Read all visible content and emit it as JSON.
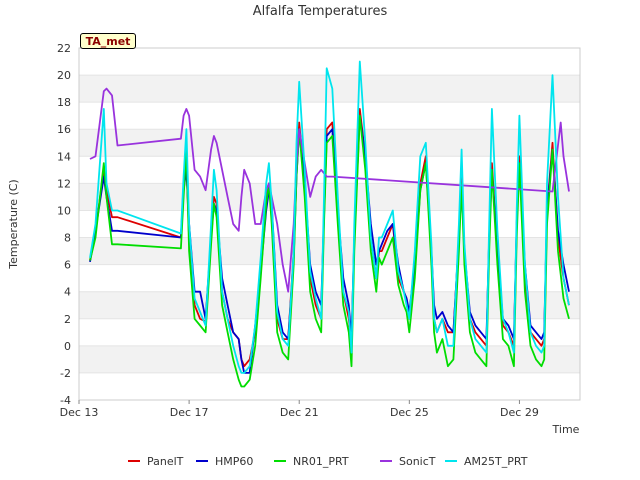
{
  "chart_data": {
    "type": "line",
    "title": "Alfalfa Temperatures",
    "xlabel": "Time",
    "ylabel": "Temperature (C)",
    "station_badge": "TA_met",
    "xlim": [
      13,
      31.2
    ],
    "ylim": [
      -4,
      22
    ],
    "y_ticks": [
      -4,
      -2,
      0,
      2,
      4,
      6,
      8,
      10,
      12,
      14,
      16,
      18,
      20,
      22
    ],
    "x_ticks": [
      {
        "value": 13,
        "label": "Dec 13"
      },
      {
        "value": 17,
        "label": "Dec 17"
      },
      {
        "value": 21,
        "label": "Dec 21"
      },
      {
        "value": 25,
        "label": "Dec 25"
      },
      {
        "value": 29,
        "label": "Dec 29"
      }
    ],
    "grid": "horizontal bands",
    "legend_position": "bottom",
    "series": [
      {
        "name": "PanelT",
        "color": "#dd0000",
        "x": [
          13.4,
          13.6,
          13.9,
          14.0,
          14.2,
          14.4,
          16.7,
          16.8,
          16.9,
          17.0,
          17.2,
          17.4,
          17.6,
          17.8,
          17.9,
          18.0,
          18.2,
          18.4,
          18.6,
          18.8,
          18.9,
          19.0,
          19.2,
          19.4,
          19.6,
          19.8,
          19.9,
          20.0,
          20.2,
          20.4,
          20.6,
          20.8,
          20.9,
          21.0,
          21.2,
          21.4,
          21.6,
          21.8,
          21.9,
          22.0,
          22.2,
          22.4,
          22.6,
          22.8,
          22.9,
          23.0,
          23.2,
          23.4,
          23.6,
          23.8,
          23.9,
          24.0,
          24.2,
          24.4,
          24.6,
          24.8,
          24.9,
          25.0,
          25.2,
          25.4,
          25.6,
          25.8,
          25.9,
          26.0,
          26.2,
          26.4,
          26.6,
          26.8,
          26.9,
          27.0,
          27.2,
          27.4,
          27.6,
          27.8,
          27.9,
          28.0,
          28.2,
          28.4,
          28.6,
          28.8,
          28.9,
          29.0,
          29.2,
          29.4,
          29.6,
          29.8,
          29.9,
          30.0,
          30.2,
          30.4,
          30.6,
          30.8
        ],
        "y": [
          6.3,
          8.5,
          13.0,
          11.5,
          9.5,
          9.5,
          8.0,
          12.0,
          13.5,
          8.0,
          3.0,
          2.0,
          1.8,
          8.0,
          11.0,
          10.5,
          4.0,
          2.0,
          1.0,
          0.5,
          -1.0,
          -1.5,
          -1.0,
          1.0,
          6.0,
          11.0,
          12.0,
          10.0,
          2.0,
          0.5,
          0.5,
          7.0,
          13.0,
          16.5,
          12.0,
          5.0,
          3.0,
          2.0,
          10.0,
          16.0,
          16.5,
          10.0,
          4.0,
          2.0,
          0.0,
          8.0,
          17.5,
          14.0,
          8.0,
          5.0,
          7.0,
          7.0,
          8.0,
          9.0,
          5.0,
          4.0,
          3.5,
          2.0,
          6.0,
          12.0,
          14.0,
          7.0,
          2.0,
          1.0,
          2.0,
          1.0,
          1.0,
          8.0,
          12.5,
          7.0,
          2.0,
          1.0,
          0.5,
          0.0,
          8.0,
          13.5,
          7.0,
          1.5,
          1.0,
          0.0,
          9.0,
          14.0,
          5.0,
          1.0,
          0.5,
          0.0,
          0.5,
          10.0,
          15.0,
          8.0,
          5.0,
          3.0
        ]
      },
      {
        "name": "HMP60",
        "color": "#0000cc",
        "x": [
          13.4,
          13.6,
          13.9,
          14.0,
          14.2,
          14.4,
          16.7,
          16.8,
          16.9,
          17.0,
          17.2,
          17.4,
          17.6,
          17.8,
          17.9,
          18.0,
          18.2,
          18.4,
          18.6,
          18.8,
          18.9,
          19.0,
          19.2,
          19.4,
          19.6,
          19.8,
          19.9,
          20.0,
          20.2,
          20.4,
          20.6,
          20.8,
          20.9,
          21.0,
          21.2,
          21.4,
          21.6,
          21.8,
          21.9,
          22.0,
          22.2,
          22.4,
          22.6,
          22.8,
          22.9,
          23.0,
          23.2,
          23.4,
          23.6,
          23.8,
          23.9,
          24.0,
          24.2,
          24.4,
          24.6,
          24.8,
          24.9,
          25.0,
          25.2,
          25.4,
          25.6,
          25.8,
          25.9,
          26.0,
          26.2,
          26.4,
          26.6,
          26.8,
          26.9,
          27.0,
          27.2,
          27.4,
          27.6,
          27.8,
          27.9,
          28.0,
          28.2,
          28.4,
          28.6,
          28.8,
          28.9,
          29.0,
          29.2,
          29.4,
          29.6,
          29.8,
          29.9,
          30.0,
          30.2,
          30.4,
          30.6,
          30.8
        ],
        "y": [
          6.2,
          8.5,
          12.5,
          11.0,
          8.5,
          8.5,
          8.0,
          11.5,
          13.0,
          9.0,
          4.0,
          4.0,
          2.0,
          8.0,
          10.5,
          10.0,
          5.0,
          3.0,
          1.0,
          0.5,
          -1.0,
          -2.0,
          -2.0,
          1.5,
          5.5,
          10.0,
          11.5,
          10.5,
          3.0,
          1.0,
          0.5,
          6.5,
          12.5,
          16.0,
          12.0,
          6.0,
          4.0,
          3.0,
          9.5,
          15.5,
          16.0,
          10.0,
          5.0,
          3.0,
          0.5,
          8.0,
          17.0,
          14.0,
          9.0,
          6.0,
          7.0,
          7.5,
          8.5,
          9.0,
          6.0,
          4.0,
          3.5,
          2.5,
          6.0,
          11.5,
          13.5,
          7.0,
          3.0,
          2.0,
          2.5,
          1.5,
          1.0,
          8.0,
          12.0,
          7.0,
          2.5,
          1.5,
          1.0,
          0.5,
          8.0,
          13.0,
          7.0,
          2.0,
          1.5,
          0.5,
          9.0,
          13.5,
          6.0,
          1.5,
          1.0,
          0.5,
          1.0,
          10.0,
          14.5,
          8.5,
          6.0,
          4.0
        ]
      },
      {
        "name": "NR01_PRT",
        "color": "#00dd00",
        "x": [
          13.4,
          13.6,
          13.9,
          14.0,
          14.2,
          14.4,
          16.7,
          16.8,
          16.9,
          17.0,
          17.2,
          17.4,
          17.6,
          17.8,
          17.9,
          18.0,
          18.2,
          18.4,
          18.6,
          18.8,
          18.9,
          19.0,
          19.2,
          19.4,
          19.6,
          19.8,
          19.9,
          20.0,
          20.2,
          20.4,
          20.6,
          20.8,
          20.9,
          21.0,
          21.2,
          21.4,
          21.6,
          21.8,
          21.9,
          22.0,
          22.2,
          22.4,
          22.6,
          22.8,
          22.9,
          23.0,
          23.2,
          23.4,
          23.6,
          23.8,
          23.9,
          24.0,
          24.2,
          24.4,
          24.6,
          24.8,
          24.9,
          25.0,
          25.2,
          25.4,
          25.6,
          25.8,
          25.9,
          26.0,
          26.2,
          26.4,
          26.6,
          26.8,
          26.9,
          27.0,
          27.2,
          27.4,
          27.6,
          27.8,
          27.9,
          28.0,
          28.2,
          28.4,
          28.6,
          28.8,
          28.9,
          29.0,
          29.2,
          29.4,
          29.6,
          29.8,
          29.9,
          30.0,
          30.2,
          30.4,
          30.6,
          30.8
        ],
        "y": [
          6.3,
          8.0,
          13.5,
          11.0,
          7.5,
          7.5,
          7.2,
          11.0,
          14.5,
          7.0,
          2.0,
          1.5,
          1.0,
          7.5,
          10.5,
          9.5,
          3.0,
          1.0,
          -1.0,
          -2.5,
          -3.0,
          -3.0,
          -2.5,
          0.0,
          5.0,
          10.5,
          12.0,
          9.0,
          1.0,
          -0.5,
          -1.0,
          6.0,
          12.5,
          16.0,
          11.0,
          4.0,
          2.0,
          1.0,
          9.0,
          15.0,
          15.5,
          9.0,
          3.0,
          1.0,
          -1.5,
          7.0,
          17.0,
          13.0,
          7.0,
          4.0,
          6.5,
          6.0,
          7.0,
          8.0,
          4.5,
          3.0,
          2.5,
          1.0,
          5.0,
          11.5,
          13.5,
          6.0,
          1.0,
          -0.5,
          0.5,
          -1.5,
          -1.0,
          7.0,
          12.0,
          6.0,
          1.0,
          -0.5,
          -1.0,
          -1.5,
          7.0,
          13.0,
          6.0,
          0.5,
          0.0,
          -1.5,
          8.0,
          13.5,
          4.0,
          0.0,
          -1.0,
          -1.5,
          -1.0,
          9.0,
          14.5,
          7.0,
          3.5,
          2.0
        ]
      },
      {
        "name": "SonicT",
        "color": "#9933dd",
        "x": [
          13.4,
          13.6,
          13.9,
          14.0,
          14.2,
          14.4,
          16.7,
          16.8,
          16.9,
          17.0,
          17.2,
          17.4,
          17.6,
          17.8,
          17.9,
          18.0,
          18.2,
          18.4,
          18.6,
          18.8,
          18.9,
          19.0,
          19.2,
          19.4,
          19.6,
          19.8,
          19.9,
          20.0,
          20.2,
          20.4,
          20.6,
          20.8,
          20.9,
          21.0,
          21.2,
          21.4,
          21.6,
          21.8,
          22.0,
          22.2,
          30.2,
          30.5,
          30.6,
          30.8
        ],
        "y": [
          13.8,
          14.0,
          18.8,
          19.0,
          18.5,
          14.8,
          15.3,
          17.0,
          17.5,
          17.0,
          13.0,
          12.5,
          11.5,
          14.5,
          15.5,
          15.0,
          13.0,
          11.0,
          9.0,
          8.5,
          11.0,
          13.0,
          12.0,
          9.0,
          9.0,
          11.5,
          12.0,
          11.0,
          9.0,
          6.0,
          4.0,
          9.0,
          13.5,
          16.0,
          13.5,
          11.0,
          12.5,
          13.0,
          12.5,
          12.5,
          11.4,
          16.5,
          14.0,
          11.4
        ]
      },
      {
        "name": "AM25T_PRT",
        "color": "#00e5ee",
        "x": [
          13.4,
          13.6,
          13.9,
          14.0,
          14.2,
          14.4,
          16.7,
          16.8,
          16.9,
          17.0,
          17.2,
          17.4,
          17.6,
          17.8,
          17.9,
          18.0,
          18.2,
          18.4,
          18.6,
          18.8,
          18.9,
          19.0,
          19.2,
          19.4,
          19.6,
          19.8,
          19.9,
          20.0,
          20.2,
          20.4,
          20.6,
          20.8,
          20.9,
          21.0,
          21.2,
          21.4,
          21.6,
          21.8,
          21.9,
          22.0,
          22.2,
          22.4,
          22.6,
          22.8,
          22.9,
          23.0,
          23.2,
          23.4,
          23.6,
          23.8,
          23.9,
          24.0,
          24.2,
          24.4,
          24.6,
          24.8,
          24.9,
          25.0,
          25.2,
          25.4,
          25.6,
          25.8,
          25.9,
          26.0,
          26.2,
          26.4,
          26.6,
          26.8,
          26.9,
          27.0,
          27.2,
          27.4,
          27.6,
          27.8,
          27.9,
          28.0,
          28.2,
          28.4,
          28.6,
          28.8,
          28.9,
          29.0,
          29.2,
          29.4,
          29.6,
          29.8,
          29.9,
          30.0,
          30.2,
          30.4,
          30.6,
          30.8
        ],
        "y": [
          6.5,
          9.0,
          17.5,
          12.0,
          10.0,
          10.0,
          8.3,
          12.5,
          16.0,
          9.0,
          3.5,
          2.5,
          1.5,
          9.0,
          13.0,
          11.5,
          4.0,
          2.0,
          0.0,
          -1.5,
          -2.0,
          -2.0,
          -1.5,
          1.5,
          6.5,
          12.0,
          13.5,
          10.5,
          2.5,
          0.5,
          0.0,
          7.0,
          15.0,
          19.5,
          13.0,
          5.5,
          3.5,
          2.0,
          11.0,
          20.5,
          19.0,
          11.0,
          4.0,
          2.5,
          -0.5,
          9.0,
          21.0,
          15.0,
          8.0,
          5.0,
          8.0,
          8.0,
          9.0,
          10.0,
          5.5,
          4.0,
          3.0,
          2.0,
          7.0,
          14.0,
          15.0,
          7.5,
          2.0,
          1.0,
          2.0,
          0.0,
          0.0,
          9.0,
          14.5,
          7.5,
          2.0,
          0.5,
          0.0,
          -0.5,
          9.0,
          17.5,
          8.5,
          2.0,
          1.0,
          -0.5,
          10.0,
          17.0,
          6.0,
          1.0,
          0.0,
          -0.5,
          0.0,
          12.0,
          20.0,
          11.0,
          5.0,
          3.0
        ]
      }
    ]
  }
}
